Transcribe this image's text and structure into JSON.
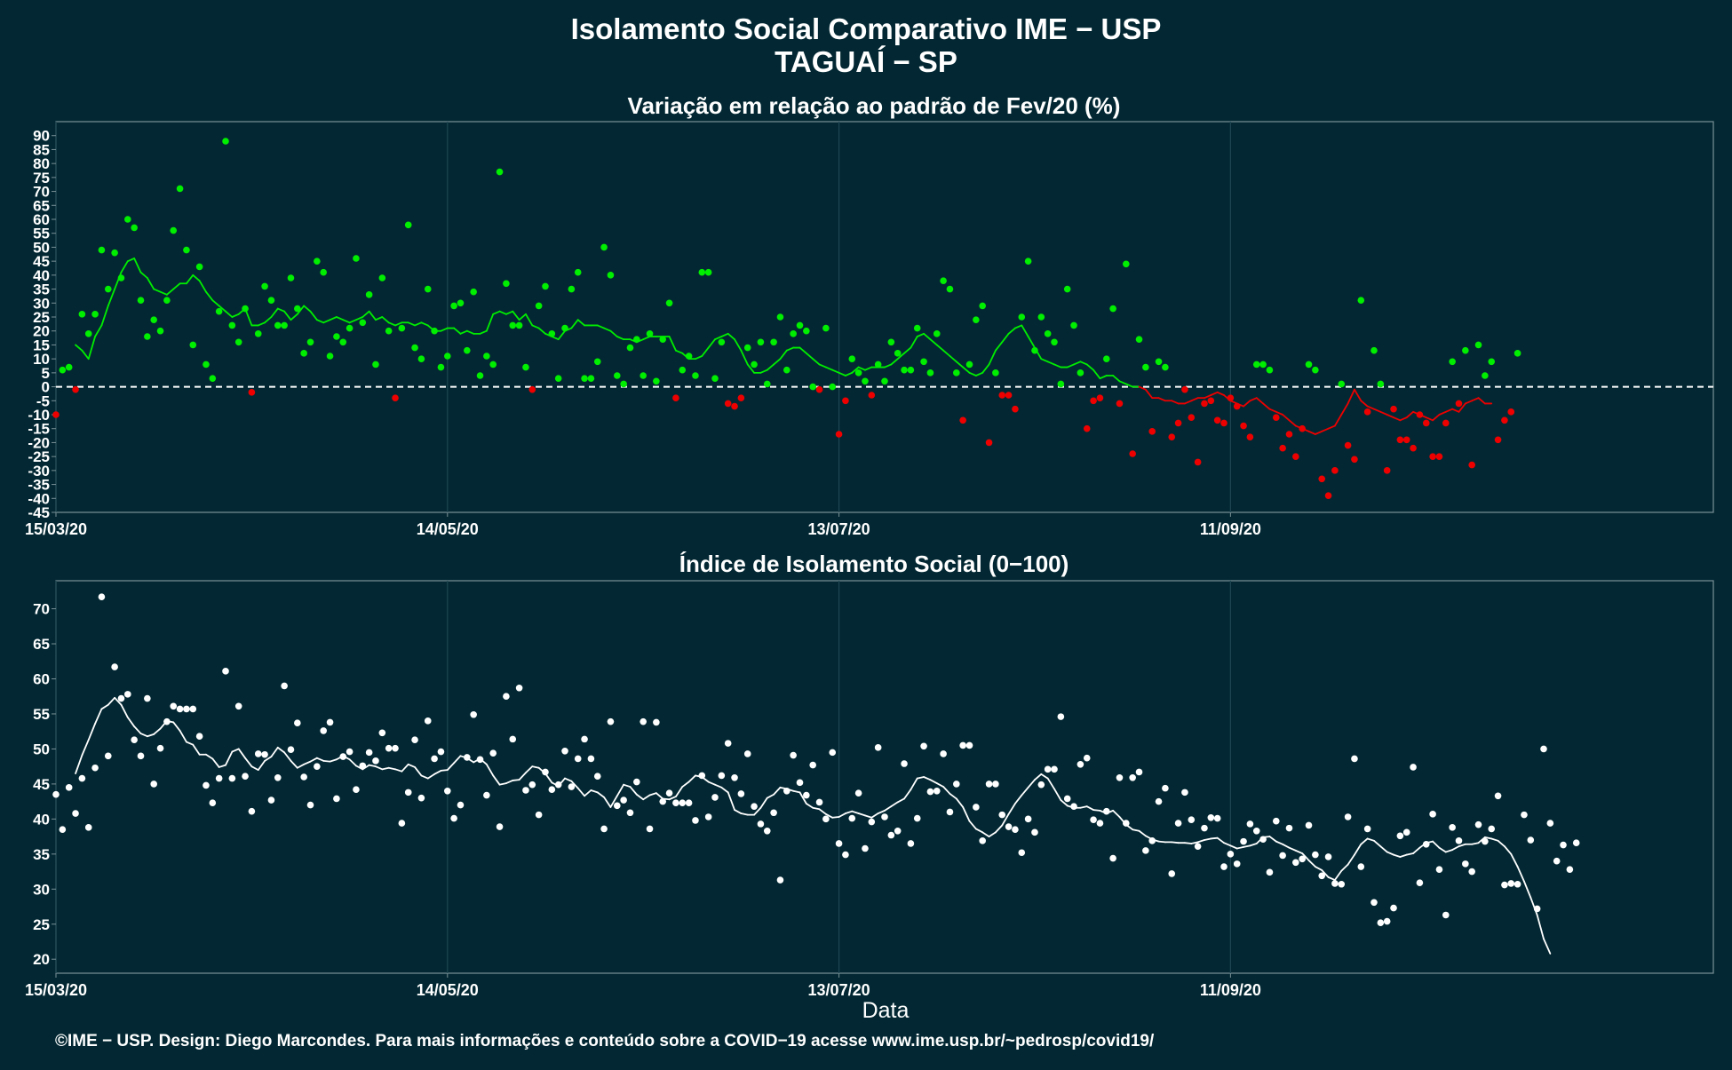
{
  "header": {
    "title_line1": "Isolamento Social Comparativo IME − USP",
    "title_line2": "TAGUAÍ − SP"
  },
  "caption": "©IME − USP. Design: Diego Marcondes. Para mais informações e conteúdo sobre a COVID−19 acesse www.ime.usp.br/~pedrosp/covid19/",
  "colors": {
    "background": "#032833",
    "positive": "#00ee00",
    "negative": "#ee0000",
    "index": "#ffffff",
    "grid": "#1d4652",
    "frame": "#7a9097"
  },
  "chart_data": [
    {
      "type": "scatter",
      "title": "Variação em relação ao padrão de Fev/20 (%)",
      "xlabel": "",
      "ylabel": "",
      "x_ticks": [
        "15/03/20",
        "14/05/20",
        "13/07/20",
        "11/09/20"
      ],
      "x_range": [
        "15/03/20",
        "24/11/20"
      ],
      "ylim": [
        -45,
        95
      ],
      "y_ticks": [
        -45,
        -40,
        -35,
        -30,
        -25,
        -20,
        -15,
        -10,
        -5,
        0,
        5,
        10,
        15,
        20,
        25,
        30,
        35,
        40,
        45,
        50,
        55,
        60,
        65,
        70,
        75,
        80,
        85,
        90
      ],
      "reference_line": 0,
      "grid": true,
      "point_colors": "green when value >= 0, red when value < 0",
      "smoothed_line": "7-day moving average, colored by sign",
      "values": [
        -10,
        6,
        7,
        -1,
        26,
        19,
        26,
        49,
        35,
        48,
        39,
        60,
        57,
        31,
        18,
        24,
        20,
        31,
        56,
        71,
        49,
        15,
        43,
        8,
        3,
        27,
        88,
        22,
        16,
        28,
        -2,
        19,
        36,
        31,
        22,
        22,
        39,
        28,
        12,
        16,
        45,
        41,
        11,
        18,
        16,
        21,
        46,
        23,
        33,
        8,
        39,
        20,
        -4,
        21,
        58,
        14,
        10,
        35,
        20,
        7,
        11,
        29,
        30,
        13,
        34,
        4,
        11,
        8,
        77,
        37,
        22,
        22,
        7,
        -1,
        29,
        36,
        19,
        3,
        21,
        35,
        41,
        3,
        3,
        9,
        50,
        40,
        4,
        1,
        14,
        17,
        4,
        19,
        2,
        17,
        30,
        -4,
        6,
        11,
        4,
        41,
        41,
        3,
        16,
        -6,
        -7,
        -4,
        14,
        8,
        16,
        1,
        16,
        25,
        6,
        19,
        22,
        20,
        0,
        -1,
        21,
        0,
        -17,
        -5,
        10,
        5,
        2,
        -3,
        8,
        2,
        16,
        12,
        6,
        6,
        21,
        9,
        5,
        19,
        38,
        35,
        5,
        -12,
        8,
        24,
        29,
        -20,
        5,
        -3,
        -3,
        -8,
        25,
        45,
        13,
        25,
        19,
        16,
        1,
        35,
        22,
        5,
        -15,
        -5,
        -4,
        10,
        28,
        -6,
        44,
        -24,
        17,
        7,
        -16,
        9,
        7,
        -18,
        -13,
        -1,
        -11,
        -27,
        -6,
        -5,
        -12,
        -13,
        -4,
        -7,
        -14,
        -18,
        8,
        8,
        6,
        -11,
        -22,
        -17,
        -25,
        -15,
        8,
        6,
        -33,
        -39,
        -30,
        1,
        -21,
        -26,
        31,
        -9,
        13,
        1,
        -30,
        -8,
        -19,
        -19,
        -22,
        -10,
        -13,
        -25,
        -25,
        -13,
        9,
        -6,
        13,
        -28,
        15,
        4,
        9,
        -19,
        -12,
        -9,
        12
      ],
      "smoothed": [
        15,
        13,
        10,
        18,
        22,
        29,
        35,
        41,
        45,
        46,
        41,
        39,
        35,
        34,
        33,
        35,
        37,
        37,
        40,
        38,
        34,
        31,
        29,
        27,
        25,
        26,
        28,
        22,
        22,
        23,
        25,
        28,
        27,
        24,
        26,
        29,
        27,
        24,
        23,
        24,
        25,
        24,
        23,
        24,
        25,
        27,
        24,
        25,
        23,
        22,
        23,
        23,
        22,
        23,
        22,
        20,
        20,
        21,
        21,
        19,
        20,
        19,
        19,
        20,
        26,
        27,
        26,
        27,
        24,
        26,
        22,
        21,
        19,
        18,
        17,
        20,
        21,
        24,
        22,
        22,
        22,
        21,
        20,
        18,
        17,
        17,
        16,
        17,
        18,
        18,
        18,
        18,
        13,
        12,
        10,
        10,
        11,
        14,
        17,
        18,
        19,
        17,
        13,
        8,
        5,
        5,
        6,
        8,
        10,
        13,
        14,
        14,
        12,
        10,
        8,
        7,
        6,
        5,
        4,
        5,
        7,
        6,
        7,
        7,
        7,
        8,
        10,
        12,
        14,
        18,
        19,
        17,
        15,
        13,
        11,
        9,
        7,
        5,
        4,
        5,
        8,
        13,
        16,
        19,
        21,
        22,
        18,
        14,
        10,
        9,
        8,
        7,
        7,
        8,
        9,
        8,
        6,
        3,
        4,
        4,
        2,
        1,
        0,
        0,
        -1,
        -4,
        -4,
        -5,
        -5,
        -6,
        -6,
        -5,
        -4,
        -4,
        -3,
        -2,
        -3,
        -5,
        -6,
        -7,
        -5,
        -4,
        -6,
        -8,
        -9,
        -10,
        -12,
        -14,
        -15,
        -16,
        -17,
        -16,
        -15,
        -14,
        -10,
        -6,
        -1,
        -5,
        -7,
        -8,
        -9,
        -10,
        -11,
        -12,
        -11,
        -9,
        -10,
        -11,
        -12,
        -10,
        -9,
        -8,
        -9,
        -6,
        -5,
        -4,
        -6,
        -6
      ]
    },
    {
      "type": "scatter",
      "title": "Índice de Isolamento Social (0−100)",
      "xlabel": "Data",
      "ylabel": "",
      "x_ticks": [
        "15/03/20",
        "14/05/20",
        "13/07/20",
        "11/09/20"
      ],
      "x_range": [
        "15/03/20",
        "24/11/20"
      ],
      "ylim": [
        18,
        74
      ],
      "y_ticks": [
        20,
        25,
        30,
        35,
        40,
        45,
        50,
        55,
        60,
        65,
        70
      ],
      "grid": true,
      "smoothed_line": "7-day moving average",
      "values": [
        43.5,
        38.5,
        44.5,
        40.8,
        45.8,
        38.8,
        47.3,
        71.7,
        49,
        61.7,
        57.2,
        57.8,
        51.3,
        49,
        57.2,
        45,
        50.1,
        53.9,
        56.1,
        55.7,
        55.7,
        55.7,
        51.8,
        44.8,
        42.3,
        45.8,
        61.1,
        45.8,
        56.1,
        46.1,
        41.1,
        49.3,
        49.2,
        42.7,
        45.9,
        59,
        49.9,
        53.7,
        46,
        42,
        47.5,
        52.6,
        53.8,
        42.9,
        48.9,
        49.6,
        44.2,
        47.6,
        49.5,
        48.3,
        52.3,
        50.1,
        50.1,
        39.4,
        43.8,
        51.3,
        43,
        54,
        48.6,
        49.6,
        44,
        40.1,
        42,
        48.8,
        54.9,
        48.5,
        43.4,
        49.4,
        38.9,
        57.5,
        51.4,
        58.7,
        44.1,
        44.9,
        40.6,
        46.7,
        44.2,
        44.9,
        49.7,
        44.6,
        48.6,
        51.4,
        48.6,
        46.1,
        38.6,
        53.9,
        41.9,
        42.7,
        40.9,
        45.3,
        53.9,
        38.6,
        53.8,
        42.5,
        43.7,
        42.3,
        42.3,
        42.3,
        39.8,
        46.2,
        40.3,
        43.1,
        46.2,
        50.8,
        45.9,
        43.6,
        49.3,
        41.8,
        39.3,
        38.3,
        40.9,
        31.3,
        44,
        49.1,
        45.2,
        43.4,
        47.7,
        42.4,
        40,
        49.5,
        36.5,
        34.9,
        40.1,
        43.7,
        35.8,
        39.6,
        50.2,
        40.3,
        37.7,
        38.3,
        47.9,
        36.5,
        40.1,
        50.4,
        43.9,
        44,
        49.3,
        41,
        45,
        50.5,
        50.5,
        41.7,
        36.9,
        45,
        45,
        40.6,
        38.9,
        38.5,
        35.2,
        40,
        38.1,
        44.9,
        47.1,
        47.1,
        54.6,
        42.9,
        41.8,
        47.8,
        48.7,
        39.9,
        39.4,
        41.1,
        34.4,
        45.9,
        39.4,
        45.9,
        46.7,
        35.5,
        36.9,
        42.5,
        44.4,
        32.2,
        39.4,
        43.8,
        39.9,
        36.1,
        38.7,
        40.2,
        40.1,
        33.2,
        35,
        33.6,
        36.8,
        39.3,
        38.3,
        37.1,
        32.4,
        39.7,
        34.8,
        38.7,
        33.8,
        34.3,
        39.1,
        34.9,
        31.9,
        34.6,
        30.8,
        30.7,
        40.3,
        48.6,
        33.2,
        38.6,
        28.1,
        25.2,
        25.4,
        27.3,
        37.6,
        38.1,
        47.4,
        30.9,
        36.4,
        40.7,
        32.8,
        26.3,
        38.8,
        36.9,
        33.6,
        32.5,
        39.2,
        36.8,
        38.6,
        43.3,
        30.6,
        30.8,
        30.7,
        40.6,
        37,
        27.2,
        50,
        39.4,
        34,
        36.3,
        32.8,
        36.6
      ],
      "smoothed": [
        46.5,
        49.1,
        51.3,
        53.6,
        55.7,
        56.3,
        57.3,
        56.3,
        54.5,
        53.2,
        52.2,
        51.8,
        52.1,
        52.9,
        54,
        53.8,
        52.6,
        51,
        50.6,
        49.2,
        49.2,
        48.6,
        47.4,
        47.7,
        49.6,
        50,
        48.7,
        47.5,
        47,
        48.3,
        48.9,
        50.2,
        49.5,
        48.3,
        47.3,
        47.8,
        48.2,
        48.7,
        48.3,
        48.2,
        48.5,
        49,
        48.5,
        47.6,
        47.1,
        47.7,
        47.5,
        47.1,
        47.3,
        47.1,
        46.8,
        47.8,
        47.4,
        46.2,
        45.8,
        46.4,
        46.9,
        47,
        48,
        49,
        48.7,
        48.1,
        48.6,
        47.8,
        46.2,
        44.9,
        45.1,
        45.5,
        45.6,
        46.6,
        47.5,
        47.3,
        46.5,
        45.2,
        44.7,
        45.8,
        45.4,
        44.4,
        43.3,
        44.1,
        43.8,
        43.1,
        41.7,
        43.3,
        44.9,
        44.6,
        43.5,
        42.8,
        43.4,
        43.7,
        42.9,
        42.8,
        43.2,
        44.6,
        45.3,
        46.2,
        46,
        45.3,
        44.9,
        44.5,
        43.8,
        41.3,
        40.8,
        40.6,
        40.6,
        41.6,
        43,
        43.5,
        44.5,
        44.3,
        44,
        43.8,
        42.2,
        41.6,
        41.4,
        40.7,
        40.2,
        40.3,
        40.8,
        41.1,
        40.8,
        40.5,
        40.2,
        40.8,
        41.2,
        41.8,
        42.4,
        42.9,
        44.2,
        45.8,
        46,
        45.6,
        45.1,
        44.6,
        43.6,
        42.9,
        41.7,
        39.7,
        38.6,
        38.1,
        37.5,
        38.1,
        39.1,
        40.7,
        42.2,
        43.4,
        44.5,
        45.6,
        46.4,
        45.8,
        44.3,
        42.7,
        41.9,
        41.6,
        41.6,
        41.8,
        41.3,
        41.2,
        40.8,
        41.2,
        40.3,
        39.2,
        38.5,
        38.3,
        37.6,
        37.1,
        36.8,
        36.7,
        36.7,
        36.6,
        36.6,
        36.5,
        36.7,
        37,
        37.2,
        37.3,
        36.6,
        36.2,
        35.8,
        36,
        36.2,
        36.5,
        37.4,
        37.5,
        36.8,
        36.4,
        35.9,
        35.5,
        35.1,
        34.1,
        33.2,
        32.7,
        31.7,
        31.3,
        32.6,
        33.5,
        34.9,
        36.4,
        37.2,
        36.9,
        36.1,
        35.3,
        34.9,
        34.6,
        34.9,
        35.1,
        35.9,
        36.6,
        36.8,
        35.9,
        35.3,
        35.6,
        36.1,
        36.4,
        36.4,
        36.6,
        37.4,
        37.2,
        36.9,
        36.1,
        35,
        33.2,
        31.1,
        28.8,
        26.3,
        22.9,
        20.8
      ]
    }
  ]
}
